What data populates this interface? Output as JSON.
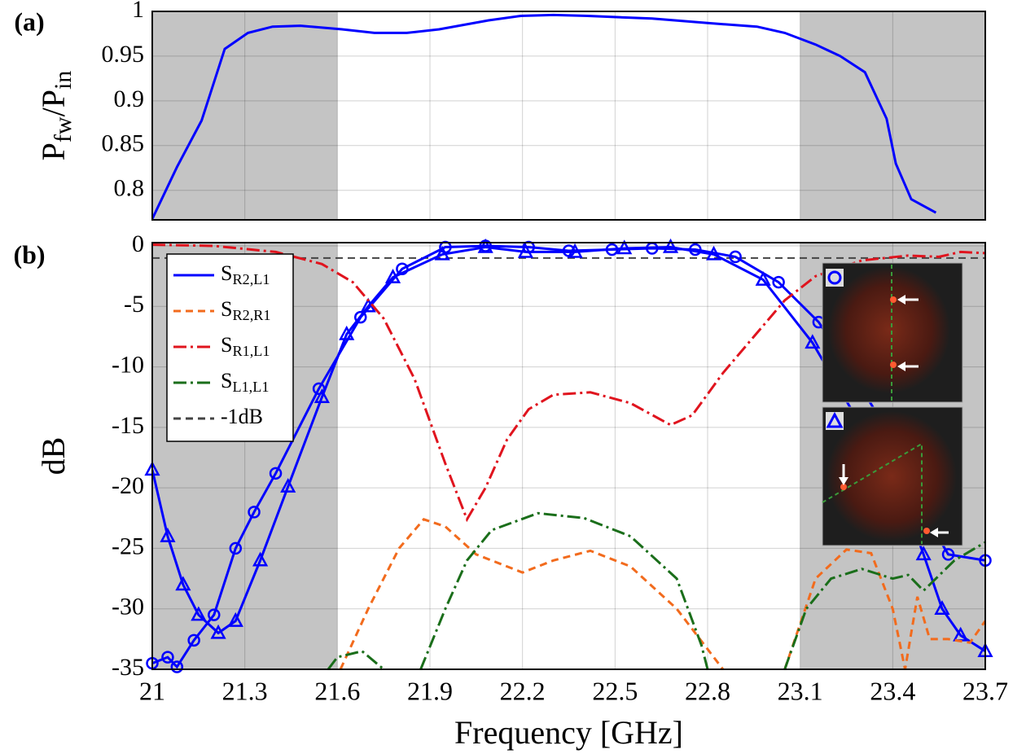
{
  "chart_data": [
    {
      "type": "line",
      "label": "(a)",
      "ylabel": [
        {
          "text": "P"
        },
        {
          "text": "fw",
          "sub": true
        },
        {
          "text": "/P"
        },
        {
          "text": "in",
          "sub": true
        }
      ],
      "xlim": [
        21,
        23.7
      ],
      "xticks": [
        21,
        21.3,
        21.6,
        21.9,
        22.2,
        22.5,
        22.8,
        23.1,
        23.4,
        23.7
      ],
      "xticklabels": false,
      "ylim": [
        0.767,
        1
      ],
      "yticks": [
        0.8,
        0.85,
        0.9,
        0.95,
        1
      ],
      "grid": true,
      "shaded_regions": [
        [
          21,
          21.6
        ],
        [
          23.1,
          23.7
        ]
      ],
      "series": [
        {
          "color": "#0000ff",
          "style": "solid",
          "x": [
            21.0,
            21.08,
            21.16,
            21.235,
            21.31,
            21.39,
            21.48,
            21.615,
            21.72,
            21.825,
            21.93,
            22.09,
            22.195,
            22.3,
            22.41,
            22.62,
            22.8,
            22.96,
            23.05,
            23.15,
            23.23,
            23.31,
            23.38,
            23.41,
            23.46,
            23.54
          ],
          "values": [
            0.768,
            0.826,
            0.878,
            0.958,
            0.976,
            0.983,
            0.984,
            0.98,
            0.976,
            0.976,
            0.98,
            0.99,
            0.995,
            0.996,
            0.995,
            0.992,
            0.987,
            0.983,
            0.976,
            0.963,
            0.95,
            0.932,
            0.88,
            0.83,
            0.79,
            0.775
          ]
        }
      ]
    },
    {
      "type": "line",
      "label": "(b)",
      "ylabel": "dB",
      "xlabel": "Frequency [GHz]",
      "xlim": [
        21,
        23.7
      ],
      "xticks": [
        21,
        21.3,
        21.6,
        21.9,
        22.2,
        22.5,
        22.8,
        23.1,
        23.4,
        23.7
      ],
      "xticklabels": true,
      "ylim": [
        -35,
        0.27
      ],
      "yticks": [
        -35,
        -30,
        -25,
        -20,
        -15,
        -10,
        -5,
        0
      ],
      "grid": true,
      "shaded_regions": [
        [
          21,
          21.6
        ],
        [
          23.1,
          23.7
        ]
      ],
      "legend": "upper left",
      "series": [
        {
          "name": "SR2,L1",
          "color": "#0000ff",
          "style": "solid",
          "marker": "circle",
          "x": [
            21.0,
            21.05,
            21.08,
            21.135,
            21.2,
            21.27,
            21.33,
            21.4,
            21.54,
            21.675,
            21.81,
            21.95,
            22.08,
            22.22,
            22.35,
            22.49,
            22.62,
            22.76,
            22.89,
            23.03,
            23.16,
            23.28,
            23.4,
            23.5,
            23.58,
            23.7
          ],
          "values": [
            -34.5,
            -34.0,
            -34.8,
            -32.6,
            -30.5,
            -25.0,
            -22.0,
            -18.8,
            -11.8,
            -5.9,
            -1.9,
            -0.1,
            0,
            -0.1,
            -0.4,
            -0.3,
            -0.2,
            -0.3,
            -0.9,
            -3.0,
            -6.3,
            -11,
            -16,
            -22,
            -25.5,
            -26.0
          ]
        },
        {
          "color": "#0000ff",
          "style": "solid",
          "marker": "triangle",
          "x": [
            21.0,
            21.05,
            21.1,
            21.15,
            21.214,
            21.27,
            21.35,
            21.44,
            21.55,
            21.63,
            21.7,
            21.78,
            21.94,
            22.08,
            22.21,
            22.37,
            22.53,
            22.68,
            22.82,
            22.98,
            23.14,
            23.3,
            23.45,
            23.5,
            23.56,
            23.62,
            23.7
          ],
          "values": [
            -18.5,
            -24,
            -28,
            -30.5,
            -32,
            -31,
            -26,
            -19.9,
            -12.5,
            -7.3,
            -5,
            -2.6,
            -0.7,
            -0.1,
            -0.5,
            -0.5,
            -0.2,
            -0.1,
            -0.7,
            -2.8,
            -8.0,
            -15,
            -22,
            -25.5,
            -30,
            -32.2,
            -33.5
          ]
        },
        {
          "name": "SR2,R1",
          "color": "#f26b1d",
          "style": "dashed",
          "x": [
            21.61,
            21.7,
            21.8,
            21.88,
            21.95,
            22.05,
            22.2,
            22.3,
            22.42,
            22.55,
            22.7,
            22.85,
            22.95,
            23.05,
            23.15,
            23.25,
            23.33,
            23.4,
            23.44,
            23.48,
            23.52,
            23.58,
            23.65,
            23.7
          ],
          "values": [
            -35,
            -30,
            -25,
            -22.6,
            -23.2,
            -25.5,
            -27,
            -26,
            -25.2,
            -26.5,
            -30,
            -35,
            null,
            -35,
            -27.5,
            -25.1,
            -25.4,
            -30,
            -35,
            -29,
            -32.5,
            -32.5,
            -32.8,
            -31
          ]
        },
        {
          "name": "SR1,L1",
          "color": "#e0141e",
          "style": "dashdot",
          "x": [
            21.0,
            21.2,
            21.4,
            21.55,
            21.65,
            21.75,
            21.85,
            21.95,
            22.02,
            22.08,
            22.15,
            22.22,
            22.3,
            22.42,
            22.55,
            22.68,
            22.75,
            22.85,
            22.95,
            23.05,
            23.15,
            23.3,
            23.45,
            23.55,
            23.62,
            23.7
          ],
          "values": [
            0.1,
            0,
            -0.5,
            -1.5,
            -3,
            -6,
            -11,
            -18,
            -22.6,
            -20,
            -16,
            -13.5,
            -12.3,
            -12.1,
            -13,
            -14.8,
            -14,
            -10.5,
            -7.5,
            -4.5,
            -2.5,
            -1.2,
            -0.8,
            -0.9,
            -0.5,
            -0.6
          ]
        },
        {
          "name": "SL1,L1",
          "color": "#1a6e1a",
          "style": "dashdot",
          "x": [
            21.57,
            21.6,
            21.68,
            21.75,
            21.8,
            21.87,
            21.95,
            22.02,
            22.1,
            22.25,
            22.4,
            22.55,
            22.7,
            22.78,
            22.8,
            22.9,
            23.05,
            23.12,
            23.2,
            23.3,
            23.4,
            23.45,
            23.5,
            23.6,
            23.7
          ],
          "values": [
            -35,
            -34,
            -33.5,
            -35,
            null,
            -35,
            -30,
            -26,
            -23.5,
            -22.1,
            -22.5,
            -24,
            -27.5,
            -33,
            -35,
            null,
            -35,
            -30,
            -27.5,
            -26.7,
            -27.5,
            -27.2,
            -28.5,
            -26,
            -24.5
          ]
        }
      ],
      "reference_lines": [
        {
          "name": "-1dB",
          "value": -1,
          "color": "#444444",
          "style": "dashed"
        }
      ]
    }
  ]
}
